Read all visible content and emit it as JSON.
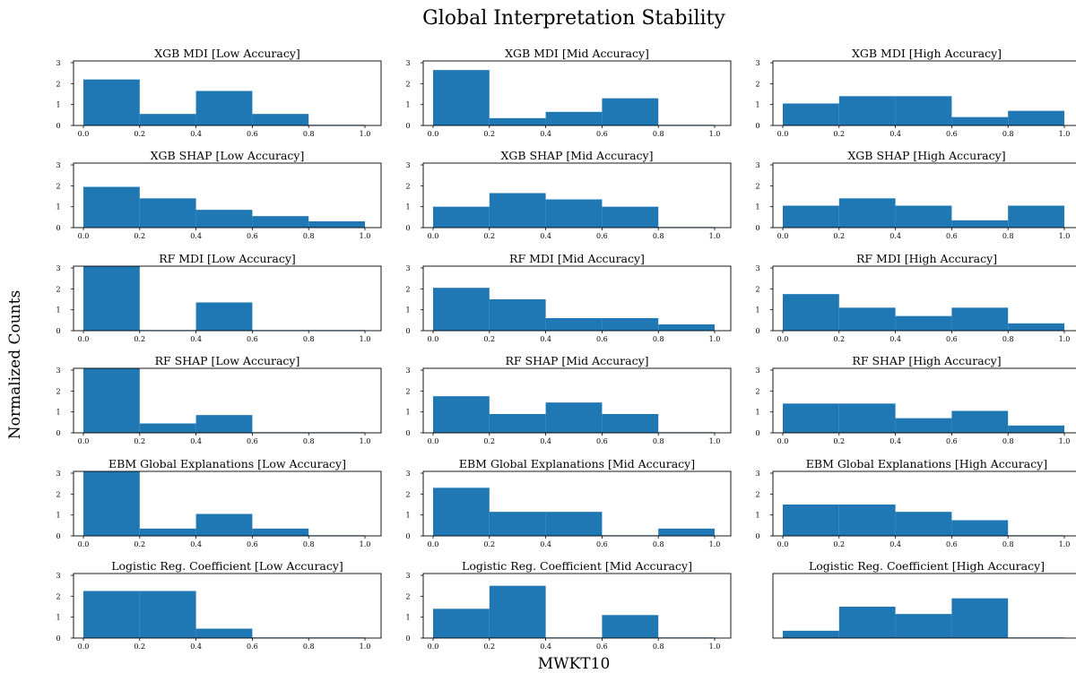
{
  "figure": {
    "title": "Global Interpretation Stability",
    "xlabel": "MWKT10",
    "ylabel": "Normalized Counts"
  },
  "colors": {
    "bar": "#1f77b4",
    "axis": "#000000",
    "background": "#ffffff"
  },
  "chart_data": [
    {
      "type": "bar",
      "title": "XGB MDI [Low Accuracy]",
      "bin_edges": [
        0,
        0.2,
        0.4,
        0.6,
        0.8,
        1.0
      ],
      "values": [
        2.2,
        0.55,
        1.65,
        0.55,
        0.03
      ],
      "ylim": [
        0,
        3
      ],
      "xlim": [
        0,
        1
      ],
      "xticks": [
        "0.0",
        "0.2",
        "0.4",
        "0.6",
        "0.8",
        "1.0"
      ],
      "yticks": [
        "0",
        "1",
        "2",
        "3"
      ]
    },
    {
      "type": "bar",
      "title": "XGB MDI [Mid Accuracy]",
      "bin_edges": [
        0,
        0.2,
        0.4,
        0.6,
        0.8,
        1.0
      ],
      "values": [
        2.65,
        0.35,
        0.65,
        1.3,
        0.03
      ],
      "ylim": [
        0,
        3
      ],
      "xlim": [
        0,
        1
      ],
      "xticks": [
        "0.0",
        "0.2",
        "0.4",
        "0.6",
        "0.8",
        "1.0"
      ],
      "yticks": [
        "0",
        "1",
        "2",
        "3"
      ]
    },
    {
      "type": "bar",
      "title": "XGB MDI [High Accuracy]",
      "bin_edges": [
        0,
        0.2,
        0.4,
        0.6,
        0.8,
        1.0
      ],
      "values": [
        1.05,
        1.4,
        1.4,
        0.4,
        0.7
      ],
      "ylim": [
        0,
        3
      ],
      "xlim": [
        0,
        1
      ],
      "xticks": [
        "0.0",
        "0.2",
        "0.4",
        "0.6",
        "0.8",
        "1.0"
      ],
      "yticks": [
        "0",
        "1",
        "2",
        "3"
      ]
    },
    {
      "type": "bar",
      "title": "XGB SHAP [Low Accuracy]",
      "bin_edges": [
        0,
        0.2,
        0.4,
        0.6,
        0.8,
        1.0
      ],
      "values": [
        1.95,
        1.4,
        0.85,
        0.55,
        0.3
      ],
      "ylim": [
        0,
        3
      ],
      "xlim": [
        0,
        1
      ],
      "xticks": [
        "0.0",
        "0.2",
        "0.4",
        "0.6",
        "0.8",
        "1.0"
      ],
      "yticks": [
        "0",
        "1",
        "2",
        "3"
      ]
    },
    {
      "type": "bar",
      "title": "XGB SHAP [Mid Accuracy]",
      "bin_edges": [
        0,
        0.2,
        0.4,
        0.6,
        0.8,
        1.0
      ],
      "values": [
        1.0,
        1.65,
        1.35,
        1.0,
        0.03
      ],
      "ylim": [
        0,
        3
      ],
      "xlim": [
        0,
        1
      ],
      "xticks": [
        "0.0",
        "0.2",
        "0.4",
        "0.6",
        "0.8",
        "1.0"
      ],
      "yticks": [
        "0",
        "1",
        "2",
        "3"
      ]
    },
    {
      "type": "bar",
      "title": "XGB SHAP [High Accuracy]",
      "bin_edges": [
        0,
        0.2,
        0.4,
        0.6,
        0.8,
        1.0
      ],
      "values": [
        1.05,
        1.4,
        1.05,
        0.35,
        1.05
      ],
      "ylim": [
        0,
        3
      ],
      "xlim": [
        0,
        1
      ],
      "xticks": [
        "0.0",
        "0.2",
        "0.4",
        "0.6",
        "0.8",
        "1.0"
      ],
      "yticks": [
        "0",
        "1",
        "2",
        "3"
      ]
    },
    {
      "type": "bar",
      "title": "RF MDI [Low Accuracy]",
      "bin_edges": [
        0,
        0.2,
        0.4,
        0.6,
        0.8,
        1.0
      ],
      "values": [
        3.2,
        0.03,
        1.35,
        0.03,
        0.03
      ],
      "ylim": [
        0,
        3
      ],
      "xlim": [
        0,
        1
      ],
      "xticks": [
        "0.0",
        "0.2",
        "0.4",
        "0.6",
        "0.8",
        "1.0"
      ],
      "yticks": [
        "0",
        "1",
        "2",
        "3"
      ]
    },
    {
      "type": "bar",
      "title": "RF MDI [Mid Accuracy]",
      "bin_edges": [
        0,
        0.2,
        0.4,
        0.6,
        0.8,
        1.0
      ],
      "values": [
        2.05,
        1.5,
        0.6,
        0.6,
        0.3
      ],
      "ylim": [
        0,
        3
      ],
      "xlim": [
        0,
        1
      ],
      "xticks": [
        "0.0",
        "0.2",
        "0.4",
        "0.6",
        "0.8",
        "1.0"
      ],
      "yticks": [
        "0",
        "1",
        "2",
        "3"
      ]
    },
    {
      "type": "bar",
      "title": "RF MDI [High Accuracy]",
      "bin_edges": [
        0,
        0.2,
        0.4,
        0.6,
        0.8,
        1.0
      ],
      "values": [
        1.75,
        1.1,
        0.7,
        1.1,
        0.35
      ],
      "ylim": [
        0,
        3
      ],
      "xlim": [
        0,
        1
      ],
      "xticks": [
        "0.0",
        "0.2",
        "0.4",
        "0.6",
        "0.8",
        "1.0"
      ],
      "yticks": [
        "0",
        "1",
        "2",
        "3"
      ]
    },
    {
      "type": "bar",
      "title": "RF SHAP [Low Accuracy]",
      "bin_edges": [
        0,
        0.2,
        0.4,
        0.6,
        0.8,
        1.0
      ],
      "values": [
        3.2,
        0.45,
        0.85,
        0.03,
        0.03
      ],
      "ylim": [
        0,
        3
      ],
      "xlim": [
        0,
        1
      ],
      "xticks": [
        "0.0",
        "0.2",
        "0.4",
        "0.6",
        "0.8",
        "1.0"
      ],
      "yticks": [
        "0",
        "1",
        "2",
        "3"
      ]
    },
    {
      "type": "bar",
      "title": "RF SHAP [Mid Accuracy]",
      "bin_edges": [
        0,
        0.2,
        0.4,
        0.6,
        0.8,
        1.0
      ],
      "values": [
        1.75,
        0.9,
        1.45,
        0.9,
        0.03
      ],
      "ylim": [
        0,
        3
      ],
      "xlim": [
        0,
        1
      ],
      "xticks": [
        "0.0",
        "0.2",
        "0.4",
        "0.6",
        "0.8",
        "1.0"
      ],
      "yticks": [
        "0",
        "1",
        "2",
        "3"
      ]
    },
    {
      "type": "bar",
      "title": "RF SHAP [High Accuracy]",
      "bin_edges": [
        0,
        0.2,
        0.4,
        0.6,
        0.8,
        1.0
      ],
      "values": [
        1.4,
        1.4,
        0.7,
        1.05,
        0.35
      ],
      "ylim": [
        0,
        3
      ],
      "xlim": [
        0,
        1
      ],
      "xticks": [
        "0.0",
        "0.2",
        "0.4",
        "0.6",
        "0.8",
        "1.0"
      ],
      "yticks": [
        "0",
        "1",
        "2",
        "3"
      ]
    },
    {
      "type": "bar",
      "title": "EBM Global Explanations [Low Accuracy]",
      "bin_edges": [
        0,
        0.2,
        0.4,
        0.6,
        0.8,
        1.0
      ],
      "values": [
        3.2,
        0.35,
        1.05,
        0.35,
        0.03
      ],
      "ylim": [
        0,
        3
      ],
      "xlim": [
        0,
        1
      ],
      "xticks": [
        "0.0",
        "0.2",
        "0.4",
        "0.6",
        "0.8",
        "1.0"
      ],
      "yticks": [
        "0",
        "1",
        "2",
        "3"
      ]
    },
    {
      "type": "bar",
      "title": "EBM Global Explanations [Mid Accuracy]",
      "bin_edges": [
        0,
        0.2,
        0.4,
        0.6,
        0.8,
        1.0
      ],
      "values": [
        2.3,
        1.15,
        1.15,
        0.03,
        0.35
      ],
      "ylim": [
        0,
        3
      ],
      "xlim": [
        0,
        1
      ],
      "xticks": [
        "0.0",
        "0.2",
        "0.4",
        "0.6",
        "0.8",
        "1.0"
      ],
      "yticks": [
        "0",
        "1",
        "2",
        "3"
      ]
    },
    {
      "type": "bar",
      "title": "EBM Global Explanations [High Accuracy]",
      "bin_edges": [
        0,
        0.2,
        0.4,
        0.6,
        0.8,
        1.0
      ],
      "values": [
        1.5,
        1.5,
        1.15,
        0.75,
        0.03
      ],
      "ylim": [
        0,
        3
      ],
      "xlim": [
        0,
        1
      ],
      "xticks": [
        "0.0",
        "0.2",
        "0.4",
        "0.6",
        "0.8",
        "1.0"
      ],
      "yticks": [
        "0",
        "1",
        "2",
        "3"
      ]
    },
    {
      "type": "bar",
      "title": "Logistic Reg. Coefficient [Low Accuracy]",
      "bin_edges": [
        0,
        0.2,
        0.4,
        0.6,
        0.8,
        1.0
      ],
      "values": [
        2.25,
        2.25,
        0.45,
        0.03,
        0.03
      ],
      "ylim": [
        0,
        3
      ],
      "xlim": [
        0,
        1
      ],
      "xticks": [
        "0.0",
        "0.2",
        "0.4",
        "0.6",
        "0.8",
        "1.0"
      ],
      "yticks": [
        "0",
        "1",
        "2",
        "3"
      ]
    },
    {
      "type": "bar",
      "title": "Logistic Reg. Coefficient [Mid Accuracy]",
      "bin_edges": [
        0,
        0.2,
        0.4,
        0.6,
        0.8,
        1.0
      ],
      "values": [
        1.4,
        2.5,
        0.03,
        1.1,
        0.03
      ],
      "ylim": [
        0,
        3
      ],
      "xlim": [
        0,
        1
      ],
      "xticks": [
        "0.0",
        "0.2",
        "0.4",
        "0.6",
        "0.8",
        "1.0"
      ],
      "yticks": [
        "0",
        "1",
        "2",
        "3"
      ]
    },
    {
      "type": "bar",
      "title": "Logistic Reg. Coefficient [High Accuracy]",
      "bin_edges": [
        0,
        0.2,
        0.4,
        0.6,
        0.8,
        1.0
      ],
      "values": [
        0.35,
        1.5,
        1.15,
        1.9,
        0.03
      ],
      "ylim": [
        0,
        3
      ],
      "xlim": [
        0,
        1
      ],
      "xticks": [],
      "yticks": []
    }
  ]
}
